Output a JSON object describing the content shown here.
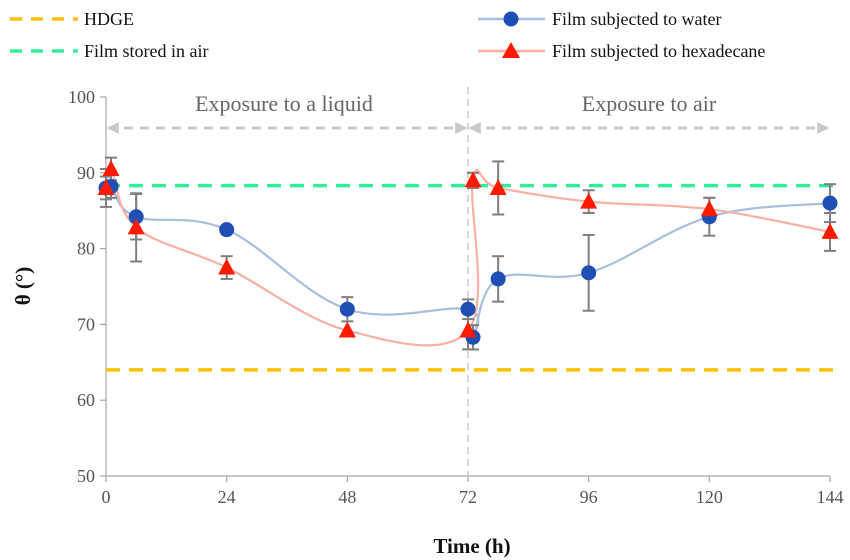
{
  "chart_data": {
    "type": "line",
    "xlabel": "Time (h)",
    "ylabel": "θ (°)",
    "xlim": [
      0,
      144
    ],
    "ylim": [
      50,
      100
    ],
    "xticks": [
      0,
      24,
      48,
      72,
      96,
      120,
      144
    ],
    "yticks": [
      50,
      60,
      70,
      80,
      90,
      100
    ],
    "grid": false,
    "legend": "top",
    "reference_lines": [
      {
        "name": "HDGE",
        "y": 64,
        "color": "#FFC000",
        "style": "dashed"
      },
      {
        "name": "Film stored in air",
        "y": 88.3,
        "color": "#33EE99",
        "style": "dashed"
      }
    ],
    "series": [
      {
        "name": "Film subjected to water",
        "color": "#1F4FB5",
        "line_color": "#A8BEDD",
        "marker": "circle",
        "x": [
          0,
          1,
          6,
          24,
          48,
          72,
          73,
          78,
          96,
          120,
          144
        ],
        "y": [
          88,
          88.2,
          84.2,
          82.5,
          72,
          72,
          68.3,
          76,
          76.8,
          84.2,
          86
        ],
        "err": [
          2.5,
          1.5,
          3,
          0,
          1.6,
          1.3,
          1.6,
          3,
          5,
          2.5,
          2.5
        ]
      },
      {
        "name": "Film subjected to hexadecane",
        "color": "#FF1A00",
        "line_color": "#F7B0A3",
        "marker": "triangle",
        "x": [
          0,
          1,
          6,
          24,
          48,
          72,
          73,
          78,
          96,
          120,
          144
        ],
        "y": [
          88,
          90.5,
          82.8,
          77.5,
          69.2,
          69.2,
          89,
          88,
          86.2,
          85.2,
          82.2
        ],
        "err": [
          1.5,
          1.5,
          4.5,
          1.5,
          0,
          2.5,
          1,
          3.5,
          1.5,
          1.5,
          2.5
        ]
      }
    ],
    "annotations": [
      {
        "text": "Exposure to a liquid",
        "x_range": [
          0,
          72
        ]
      },
      {
        "text": "Exposure to air",
        "x_range": [
          72,
          144
        ]
      }
    ],
    "divider_x": 72
  }
}
